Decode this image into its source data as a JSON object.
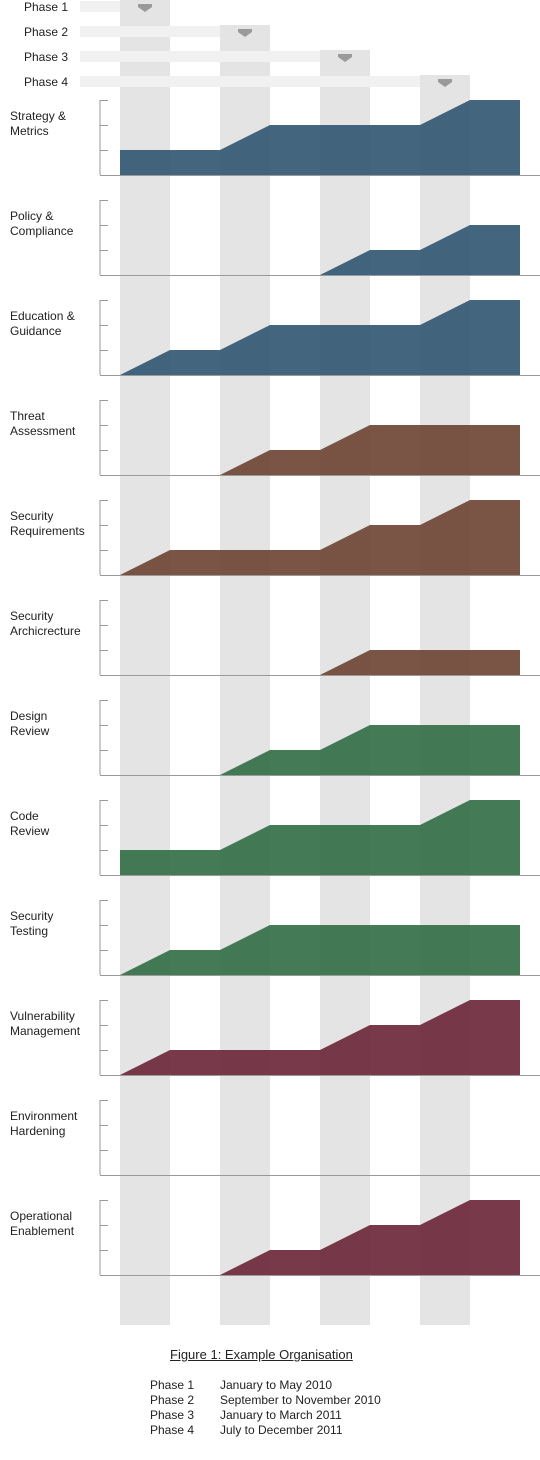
{
  "chart_data": {
    "type": "area",
    "x": [
      "Phase 1",
      "Phase 2",
      "Phase 3",
      "Phase 4"
    ],
    "phases": [
      "Phase 1",
      "Phase 2",
      "Phase 3",
      "Phase 4"
    ],
    "level_max": 3,
    "series": [
      {
        "name": "Strategy & Metrics",
        "color": "#2f5470",
        "start": 1,
        "end": [
          1,
          2,
          2,
          3
        ]
      },
      {
        "name": "Policy & Compliance",
        "color": "#2f5470",
        "start": 0,
        "end": [
          0,
          0,
          1,
          2
        ]
      },
      {
        "name": "Education & Guidance",
        "color": "#2f5470",
        "start": 0,
        "end": [
          1,
          2,
          2,
          3
        ]
      },
      {
        "name": "Threat Assessment",
        "color": "#6b4331",
        "start": 0,
        "end": [
          0,
          1,
          2,
          2
        ]
      },
      {
        "name": "Security Requirements",
        "color": "#6b4331",
        "start": 0,
        "end": [
          1,
          1,
          2,
          3
        ]
      },
      {
        "name": "Security Archicrecture",
        "color": "#6b4331",
        "start": 0,
        "end": [
          0,
          0,
          1,
          1
        ]
      },
      {
        "name": "Design Review",
        "color": "#306d44",
        "start": 0,
        "end": [
          0,
          1,
          2,
          2
        ]
      },
      {
        "name": "Code Review",
        "color": "#306d44",
        "start": 1,
        "end": [
          1,
          2,
          2,
          3
        ]
      },
      {
        "name": "Security Testing",
        "color": "#306d44",
        "start": 0,
        "end": [
          1,
          2,
          2,
          2
        ]
      },
      {
        "name": "Vulnerability Management",
        "color": "#692436",
        "start": 0,
        "end": [
          1,
          1,
          2,
          3
        ]
      },
      {
        "name": "Environment Hardening",
        "color": "#692436",
        "start": 0,
        "end": [
          0,
          0,
          0,
          0
        ]
      },
      {
        "name": "Operational Enablement",
        "color": "#692436",
        "start": 0,
        "end": [
          0,
          1,
          2,
          3
        ]
      }
    ],
    "grid": false
  },
  "figure": {
    "caption": "Figure 1: Example Organisation",
    "legend": [
      {
        "phase": "Phase 1",
        "dates": "January to May 2010"
      },
      {
        "phase": "Phase 2",
        "dates": "September to November 2010"
      },
      {
        "phase": "Phase 3",
        "dates": "January to March 2011"
      },
      {
        "phase": "Phase 4",
        "dates": "July to December 2011"
      }
    ]
  }
}
